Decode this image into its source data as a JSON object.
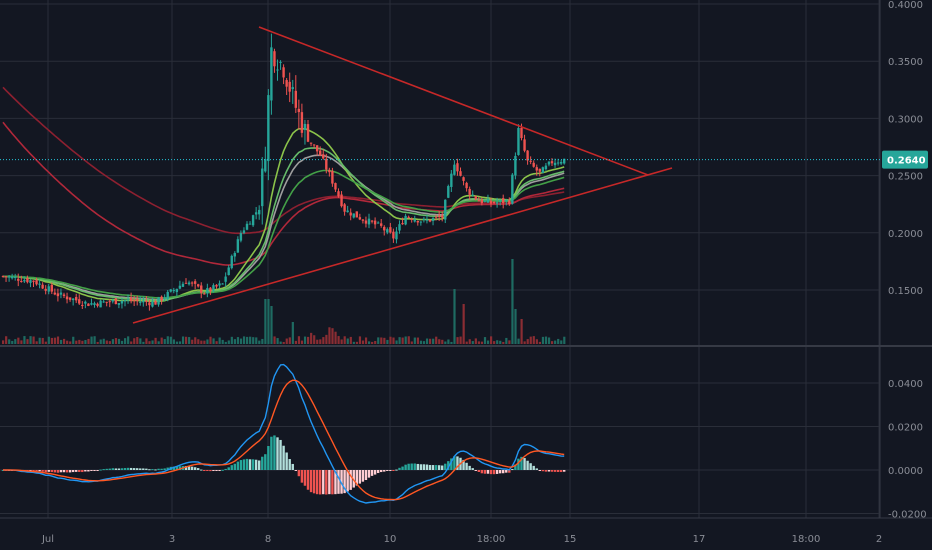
{
  "chart_data": [
    {
      "type": "candlestick",
      "title": "",
      "x_ticks": [
        "Jul",
        "3",
        "8",
        "10",
        "18:00",
        "15",
        "17",
        "18:00",
        "2"
      ],
      "y_ticks": [
        "0.1500",
        "0.2000",
        "0.2500",
        "0.3000",
        "0.3500",
        "0.4000"
      ],
      "ylim": [
        0.115,
        0.4
      ],
      "last_price": "0.2640",
      "grid": true,
      "colors": {
        "up": "#26a69a",
        "down": "#ef5350",
        "trendline": "#c62828",
        "price_line": "#26c6da",
        "background": "#131722",
        "grid": "#2a2e39"
      },
      "moving_averages": [
        {
          "color": "#8d2030"
        },
        {
          "color": "#b0283a"
        },
        {
          "color": "#9e9e9e"
        },
        {
          "color": "#8bc34a"
        },
        {
          "color": "#66bb6a"
        },
        {
          "color": "#43a047"
        }
      ]
    },
    {
      "type": "macd",
      "y_ticks": [
        "-0.0200",
        "0.0000",
        "0.0200",
        "0.0400"
      ],
      "ylim": [
        -0.022,
        0.05
      ],
      "colors": {
        "macd": "#2196f3",
        "signal": "#ff5722",
        "hist_pos": "#26a69a",
        "hist_pos_light": "#b2dfdb",
        "hist_neg": "#ef5350",
        "hist_neg_light": "#ffcdd2"
      }
    }
  ]
}
